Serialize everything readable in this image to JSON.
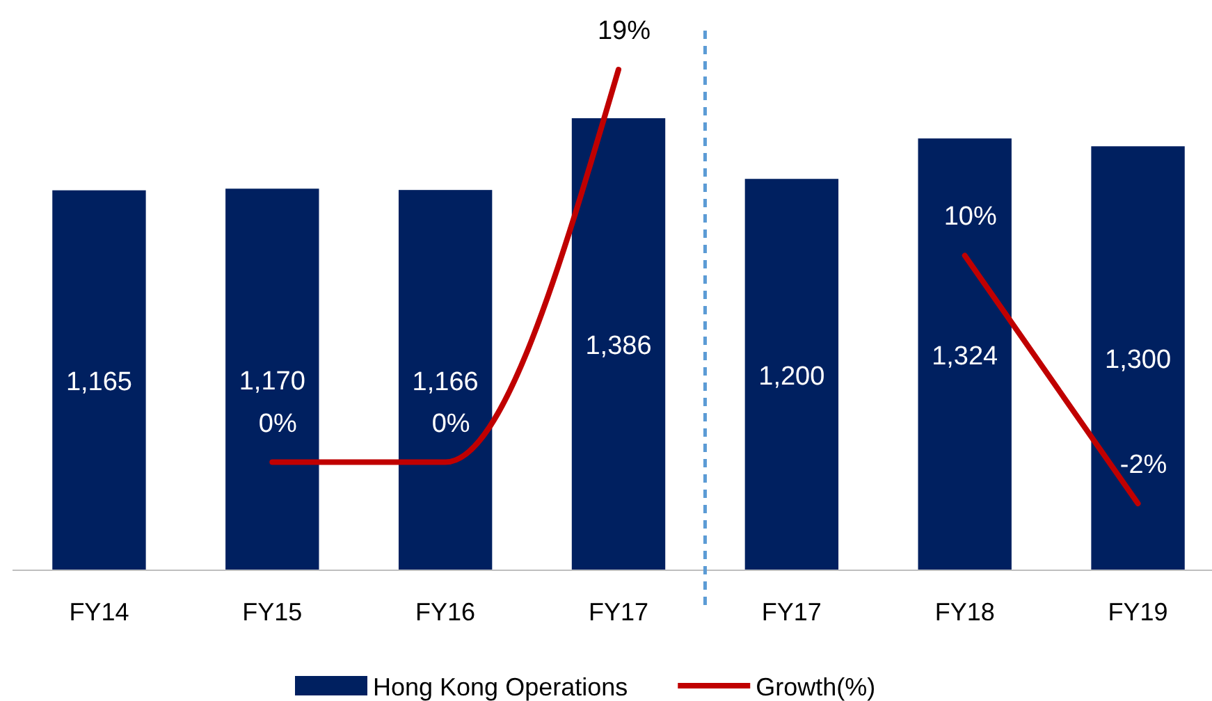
{
  "chart_data": {
    "type": "bar",
    "categories": [
      "FY14",
      "FY15",
      "FY16",
      "FY17",
      "FY17",
      "FY18",
      "FY19"
    ],
    "series": [
      {
        "name": "Hong Kong Operations",
        "color": "#002060",
        "values": [
          1165,
          1170,
          1166,
          1386,
          1200,
          1324,
          1300
        ],
        "value_labels": [
          "1,165",
          "1,170",
          "1,166",
          "1,386",
          "1,200",
          "1,324",
          "1,300"
        ]
      },
      {
        "name": "Growth(%)",
        "type": "line",
        "axis": "y2",
        "color": "#c00000",
        "values": [
          null,
          0,
          0,
          19,
          null,
          10,
          -2
        ],
        "value_labels": [
          null,
          "0%",
          "0%",
          "19%",
          null,
          "10%",
          "-2%"
        ]
      }
    ],
    "tick_labels": "x",
    "legend": "bottom",
    "line_style": "solid"
  }
}
